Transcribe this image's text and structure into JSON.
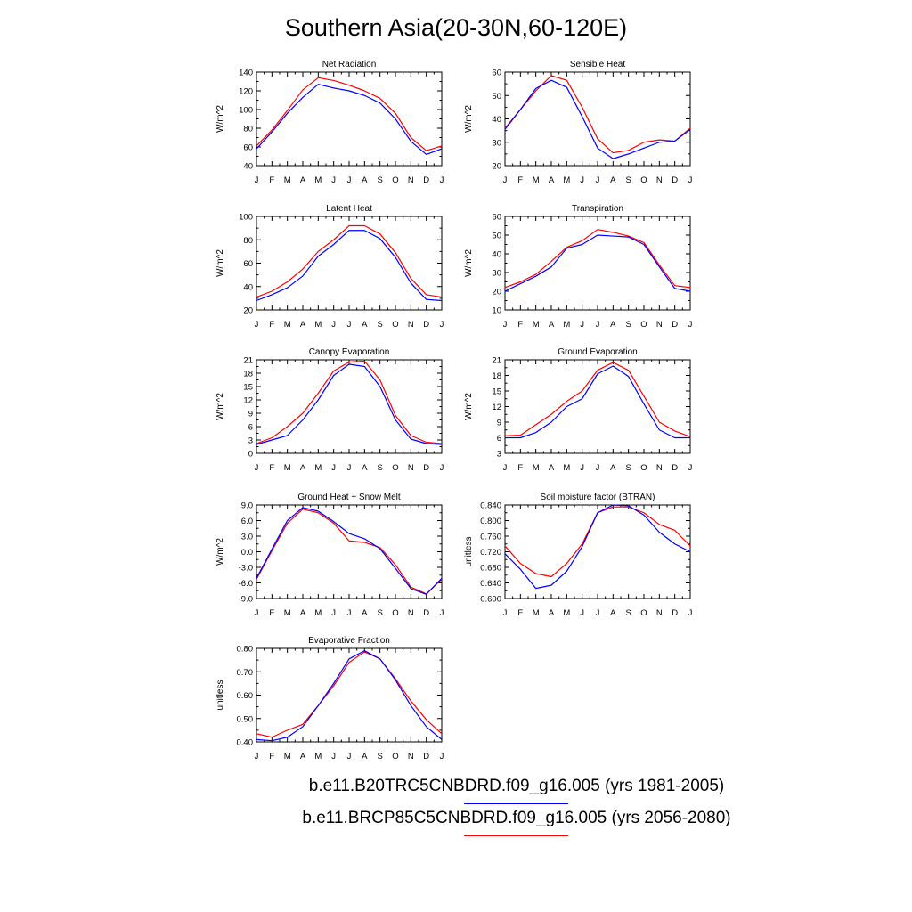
{
  "figure": {
    "title": "Southern Asia(20-30N,60-120E)",
    "month_labels": [
      "J",
      "F",
      "M",
      "A",
      "M",
      "J",
      "J",
      "A",
      "S",
      "O",
      "N",
      "D",
      "J"
    ],
    "legend": [
      {
        "label": "b.e11.B20TRC5CNBDRD.f09_g16.005 (yrs 1981-2005)",
        "color": "#0000ff"
      },
      {
        "label": "b.e11.BRCP85C5CNBDRD.f09_g16.005 (yrs 2056-2080)",
        "color": "#ff0000"
      }
    ]
  },
  "chart_data": [
    {
      "type": "line",
      "title": "Net Radiation",
      "ylabel": "W/m^2",
      "ylim": [
        40,
        140
      ],
      "yticks": [
        40,
        60,
        80,
        100,
        120,
        140
      ],
      "ytick_labels": [
        "40",
        "60",
        "80",
        "100",
        "120",
        "140"
      ],
      "series": [
        {
          "color": "#ff0000",
          "values": [
            61,
            78,
            99,
            121,
            134,
            131,
            126,
            120,
            112,
            96,
            70,
            56,
            61
          ]
        },
        {
          "color": "#0000ff",
          "values": [
            58,
            76,
            96,
            113,
            127,
            123,
            120,
            115,
            107,
            90,
            66,
            52,
            58
          ]
        }
      ]
    },
    {
      "type": "line",
      "title": "Sensible Heat",
      "ylabel": "W/m^2",
      "ylim": [
        20,
        60
      ],
      "yticks": [
        20,
        30,
        40,
        50,
        60
      ],
      "ytick_labels": [
        "20",
        "30",
        "40",
        "50",
        "60"
      ],
      "series": [
        {
          "color": "#ff0000",
          "values": [
            36,
            44,
            52,
            58.5,
            56.5,
            45,
            31.5,
            25.5,
            26.5,
            30,
            31,
            30.5,
            36
          ]
        },
        {
          "color": "#0000ff",
          "values": [
            35.5,
            44,
            53,
            56.5,
            53.5,
            41,
            27.5,
            23,
            25,
            27.5,
            30,
            30.5,
            35.5
          ]
        }
      ]
    },
    {
      "type": "line",
      "title": "Latent Heat",
      "ylabel": "W/m^2",
      "ylim": [
        20,
        100
      ],
      "yticks": [
        20,
        40,
        60,
        80,
        100
      ],
      "ytick_labels": [
        "20",
        "40",
        "60",
        "80",
        "100"
      ],
      "series": [
        {
          "color": "#ff0000",
          "values": [
            31,
            36,
            44,
            55,
            70,
            80,
            92,
            92,
            85,
            69,
            47,
            33,
            31
          ]
        },
        {
          "color": "#0000ff",
          "values": [
            28,
            33,
            39,
            49,
            66,
            76,
            88,
            88,
            81,
            65,
            43,
            29,
            28
          ]
        }
      ]
    },
    {
      "type": "line",
      "title": "Transpiration",
      "ylabel": "W/m^2",
      "ylim": [
        10,
        60
      ],
      "yticks": [
        10,
        20,
        30,
        40,
        50,
        60
      ],
      "ytick_labels": [
        "10",
        "20",
        "30",
        "40",
        "50",
        "60"
      ],
      "series": [
        {
          "color": "#ff0000",
          "values": [
            22,
            25,
            29,
            36,
            43.5,
            47,
            53,
            51.5,
            49.5,
            46,
            34,
            23,
            22
          ]
        },
        {
          "color": "#0000ff",
          "values": [
            20,
            24,
            28,
            33,
            43,
            45,
            50,
            49.5,
            49,
            45,
            33,
            21.5,
            20
          ]
        }
      ]
    },
    {
      "type": "line",
      "title": "Canopy Evaporation",
      "ylabel": "W/m^2",
      "ylim": [
        0,
        21
      ],
      "yticks": [
        0,
        3,
        6,
        9,
        12,
        15,
        18,
        21
      ],
      "ytick_labels": [
        "0",
        "3",
        "6",
        "9",
        "12",
        "15",
        "18",
        "21"
      ],
      "series": [
        {
          "color": "#ff0000",
          "values": [
            2.2,
            3.5,
            6,
            9,
            13.5,
            18.5,
            20.5,
            20.7,
            16.5,
            8.5,
            4,
            2.5,
            2.2
          ]
        },
        {
          "color": "#0000ff",
          "values": [
            2,
            3,
            4,
            7.5,
            12,
            17.5,
            20,
            19.5,
            15,
            7.5,
            3.2,
            2.2,
            2
          ]
        }
      ]
    },
    {
      "type": "line",
      "title": "Ground Evaporation",
      "ylabel": "W/m^2",
      "ylim": [
        3,
        21
      ],
      "yticks": [
        3,
        6,
        9,
        12,
        15,
        18,
        21
      ],
      "ytick_labels": [
        "3",
        "6",
        "9",
        "12",
        "15",
        "18",
        "21"
      ],
      "series": [
        {
          "color": "#ff0000",
          "values": [
            6.4,
            6.5,
            8.5,
            10.5,
            13,
            15,
            19,
            20.5,
            19,
            14,
            9,
            7.3,
            6.2
          ]
        },
        {
          "color": "#0000ff",
          "values": [
            6,
            6,
            7,
            9,
            12,
            13.5,
            18.3,
            19.8,
            17.8,
            12.5,
            7.5,
            6,
            6
          ]
        }
      ]
    },
    {
      "type": "line",
      "title": "Ground Heat + Snow Melt",
      "ylabel": "W/m^2",
      "ylim": [
        -9,
        9
      ],
      "yticks": [
        -9,
        -6,
        -3,
        0,
        3,
        6,
        9
      ],
      "ytick_labels": [
        "-9.0",
        "-6.0",
        "-3.0",
        "0.0",
        "3.0",
        "6.0",
        "9.0"
      ],
      "series": [
        {
          "color": "#ff0000",
          "values": [
            -5.3,
            0.2,
            5.5,
            8.2,
            7.5,
            5.5,
            2.1,
            1.8,
            0.8,
            -2.5,
            -6.8,
            -8.1,
            -5.3
          ]
        },
        {
          "color": "#0000ff",
          "values": [
            -5.1,
            0.5,
            6,
            8.5,
            7.8,
            5.8,
            3.5,
            2.5,
            0.6,
            -3.2,
            -7.1,
            -8.2,
            -5.1
          ]
        }
      ]
    },
    {
      "type": "line",
      "title": "Soil moisture factor (BTRAN)",
      "ylabel": "unitless",
      "ylim": [
        0.6,
        0.84
      ],
      "yticks": [
        0.6,
        0.64,
        0.68,
        0.72,
        0.76,
        0.8,
        0.84
      ],
      "ytick_labels": [
        "0.600",
        "0.640",
        "0.680",
        "0.720",
        "0.760",
        "0.800",
        "0.840"
      ],
      "series": [
        {
          "color": "#ff0000",
          "values": [
            0.735,
            0.69,
            0.664,
            0.656,
            0.69,
            0.74,
            0.82,
            0.835,
            0.835,
            0.82,
            0.79,
            0.775,
            0.735
          ]
        },
        {
          "color": "#0000ff",
          "values": [
            0.715,
            0.675,
            0.626,
            0.634,
            0.67,
            0.733,
            0.82,
            0.84,
            0.838,
            0.814,
            0.77,
            0.74,
            0.72
          ]
        }
      ]
    },
    {
      "type": "line",
      "title": "Evaporative Fraction",
      "ylabel": "unitless",
      "ylim": [
        0.4,
        0.8
      ],
      "yticks": [
        0.4,
        0.5,
        0.6,
        0.7,
        0.8
      ],
      "ytick_labels": [
        "0.40",
        "0.50",
        "0.60",
        "0.70",
        "0.80"
      ],
      "series": [
        {
          "color": "#ff0000",
          "values": [
            0.435,
            0.42,
            0.45,
            0.475,
            0.555,
            0.64,
            0.74,
            0.785,
            0.755,
            0.67,
            0.575,
            0.495,
            0.435
          ]
        },
        {
          "color": "#0000ff",
          "values": [
            0.41,
            0.405,
            0.42,
            0.465,
            0.555,
            0.65,
            0.755,
            0.79,
            0.755,
            0.665,
            0.555,
            0.465,
            0.41
          ]
        }
      ]
    }
  ]
}
